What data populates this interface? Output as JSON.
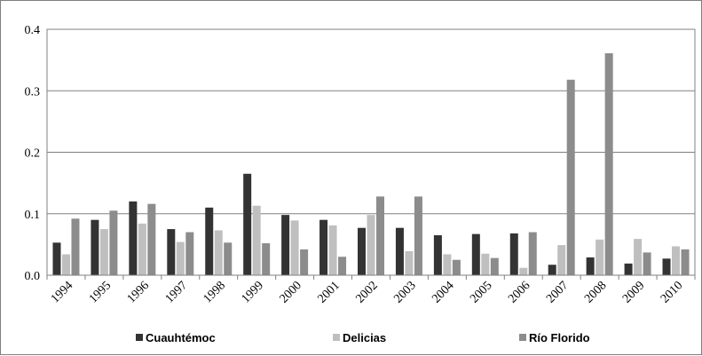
{
  "chart_data": {
    "type": "bar",
    "title": "",
    "xlabel": "",
    "ylabel": "",
    "categories": [
      "1994",
      "1995",
      "1996",
      "1997",
      "1998",
      "1999",
      "2000",
      "2001",
      "2002",
      "2003",
      "2004",
      "2005",
      "2006",
      "2007",
      "2008",
      "2009",
      "2010"
    ],
    "series": [
      {
        "name": "Cuauhtémoc",
        "color": "#333333",
        "values": [
          0.053,
          0.09,
          0.12,
          0.075,
          0.11,
          0.165,
          0.098,
          0.09,
          0.077,
          0.077,
          0.065,
          0.067,
          0.068,
          0.017,
          0.029,
          0.019,
          0.027
        ]
      },
      {
        "name": "Delicias",
        "color": "#bfbfbf",
        "values": [
          0.034,
          0.075,
          0.084,
          0.054,
          0.073,
          0.113,
          0.089,
          0.081,
          0.098,
          0.039,
          0.034,
          0.035,
          0.012,
          0.049,
          0.058,
          0.059,
          0.047
        ]
      },
      {
        "name": "Río Florido",
        "color": "#8c8c8c",
        "values": [
          0.092,
          0.105,
          0.116,
          0.07,
          0.053,
          0.052,
          0.042,
          0.03,
          0.128,
          0.128,
          0.025,
          0.028,
          0.07,
          0.318,
          0.361,
          0.037,
          0.042
        ]
      }
    ],
    "yticks": [
      "0.0",
      "0.1",
      "0.2",
      "0.3",
      "0.4"
    ],
    "ylim": [
      0,
      0.4
    ],
    "grid": true,
    "legend_position": "bottom"
  }
}
